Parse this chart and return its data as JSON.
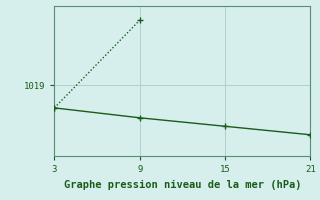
{
  "title": "Graphe pression niveau de la mer (hPa)",
  "bg_color": "#d6efec",
  "line_color": "#1a5c1a",
  "grid_color": "#aaccc8",
  "x_ticks": [
    3,
    9,
    15,
    21
  ],
  "xlim": [
    3,
    21
  ],
  "ylim": [
    1016.5,
    1021.8
  ],
  "y_ticks": [
    1019
  ],
  "line1_x": [
    3,
    9
  ],
  "line1_y": [
    1018.2,
    1021.3
  ],
  "line2_x": [
    3,
    9,
    15,
    21
  ],
  "line2_y": [
    1018.2,
    1017.85,
    1017.55,
    1017.25
  ],
  "marker": "+",
  "marker_size": 5,
  "line_width": 1.0,
  "title_fontsize": 7.5,
  "tick_fontsize": 6.5,
  "title_color": "#1a5c1a",
  "axis_color": "#5a8a7a"
}
